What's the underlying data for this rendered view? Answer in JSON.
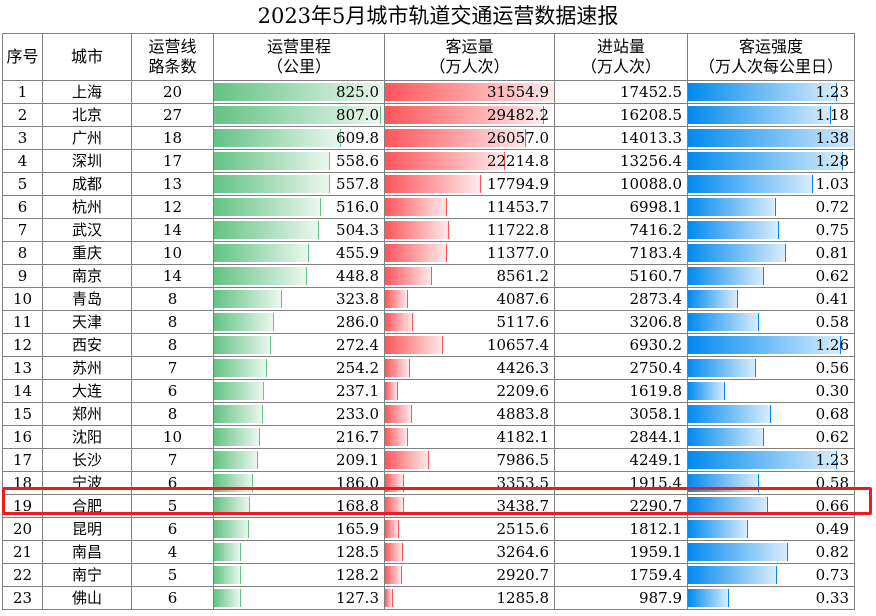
{
  "title": "2023年5月城市轨道交通运营数据速报",
  "headers": {
    "rank": "序号",
    "city": "城市",
    "lines": [
      "运营线",
      "路条数"
    ],
    "mileage": [
      "运营里程",
      "（公里）"
    ],
    "ridership": [
      "客运量",
      "（万人次）"
    ],
    "entries": [
      "进站量",
      "（万人次）"
    ],
    "intensity": [
      "客运强度",
      "（万人次每公里日）"
    ]
  },
  "colors": {
    "mileage_bar": "#63c384",
    "ridership_bar": "#ff555a",
    "intensity_bar": "#008aef",
    "highlight_border": "#ee1c1c"
  },
  "highlighted_rank": "19",
  "rows": [
    {
      "rank": "1",
      "city": "上海",
      "lines": "20",
      "mileage": "825.0",
      "ridership": "31554.9",
      "entries": "17452.5",
      "intensity": "1.23"
    },
    {
      "rank": "2",
      "city": "北京",
      "lines": "27",
      "mileage": "807.0",
      "ridership": "29482.2",
      "entries": "16208.5",
      "intensity": "1.18"
    },
    {
      "rank": "3",
      "city": "广州",
      "lines": "18",
      "mileage": "609.8",
      "ridership": "26057.0",
      "entries": "14013.3",
      "intensity": "1.38"
    },
    {
      "rank": "4",
      "city": "深圳",
      "lines": "17",
      "mileage": "558.6",
      "ridership": "22214.8",
      "entries": "13256.4",
      "intensity": "1.28"
    },
    {
      "rank": "5",
      "city": "成都",
      "lines": "13",
      "mileage": "557.8",
      "ridership": "17794.9",
      "entries": "10088.0",
      "intensity": "1.03"
    },
    {
      "rank": "6",
      "city": "杭州",
      "lines": "12",
      "mileage": "516.0",
      "ridership": "11453.7",
      "entries": "6998.1",
      "intensity": "0.72"
    },
    {
      "rank": "7",
      "city": "武汉",
      "lines": "14",
      "mileage": "504.3",
      "ridership": "11722.8",
      "entries": "7416.2",
      "intensity": "0.75"
    },
    {
      "rank": "8",
      "city": "重庆",
      "lines": "10",
      "mileage": "455.9",
      "ridership": "11377.0",
      "entries": "7183.4",
      "intensity": "0.81"
    },
    {
      "rank": "9",
      "city": "南京",
      "lines": "14",
      "mileage": "448.8",
      "ridership": "8561.2",
      "entries": "5160.7",
      "intensity": "0.62"
    },
    {
      "rank": "10",
      "city": "青岛",
      "lines": "8",
      "mileage": "323.8",
      "ridership": "4087.6",
      "entries": "2873.4",
      "intensity": "0.41"
    },
    {
      "rank": "11",
      "city": "天津",
      "lines": "8",
      "mileage": "286.0",
      "ridership": "5117.6",
      "entries": "3206.8",
      "intensity": "0.58"
    },
    {
      "rank": "12",
      "city": "西安",
      "lines": "8",
      "mileage": "272.4",
      "ridership": "10657.4",
      "entries": "6930.2",
      "intensity": "1.26"
    },
    {
      "rank": "13",
      "city": "苏州",
      "lines": "7",
      "mileage": "254.2",
      "ridership": "4426.3",
      "entries": "2750.4",
      "intensity": "0.56"
    },
    {
      "rank": "14",
      "city": "大连",
      "lines": "6",
      "mileage": "237.1",
      "ridership": "2209.6",
      "entries": "1619.8",
      "intensity": "0.30"
    },
    {
      "rank": "15",
      "city": "郑州",
      "lines": "8",
      "mileage": "233.0",
      "ridership": "4883.8",
      "entries": "3058.1",
      "intensity": "0.68"
    },
    {
      "rank": "16",
      "city": "沈阳",
      "lines": "10",
      "mileage": "216.7",
      "ridership": "4182.1",
      "entries": "2844.1",
      "intensity": "0.62"
    },
    {
      "rank": "17",
      "city": "长沙",
      "lines": "7",
      "mileage": "209.1",
      "ridership": "7986.5",
      "entries": "4249.1",
      "intensity": "1.23"
    },
    {
      "rank": "18",
      "city": "宁波",
      "lines": "6",
      "mileage": "186.0",
      "ridership": "3353.5",
      "entries": "1915.4",
      "intensity": "0.58"
    },
    {
      "rank": "19",
      "city": "合肥",
      "lines": "5",
      "mileage": "168.8",
      "ridership": "3438.7",
      "entries": "2290.7",
      "intensity": "0.66"
    },
    {
      "rank": "20",
      "city": "昆明",
      "lines": "6",
      "mileage": "165.9",
      "ridership": "2515.6",
      "entries": "1812.1",
      "intensity": "0.49"
    },
    {
      "rank": "21",
      "city": "南昌",
      "lines": "4",
      "mileage": "128.5",
      "ridership": "3264.6",
      "entries": "1959.1",
      "intensity": "0.82"
    },
    {
      "rank": "22",
      "city": "南宁",
      "lines": "5",
      "mileage": "128.2",
      "ridership": "2920.7",
      "entries": "1759.4",
      "intensity": "0.73"
    },
    {
      "rank": "23",
      "city": "佛山",
      "lines": "6",
      "mileage": "127.3",
      "ridership": "1285.8",
      "entries": "987.9",
      "intensity": "0.33"
    }
  ]
}
